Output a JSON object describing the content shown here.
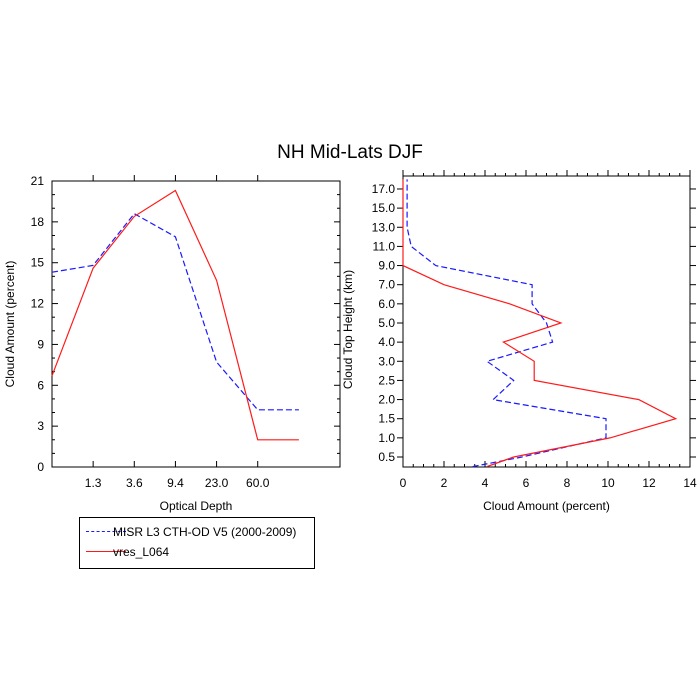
{
  "page": {
    "title": "NH Mid-Lats DJF"
  },
  "legend": {
    "entries": [
      {
        "label": "MISR L3 CTH-OD V5 (2000-2009)",
        "color": "#1a1aff",
        "style": "dashed"
      },
      {
        "label": "vres_L064",
        "color": "#ff1a1a",
        "style": "solid"
      }
    ]
  },
  "chart_data": [
    {
      "type": "line",
      "xlabel": "Optical Depth",
      "ylabel": "Cloud Amount (percent)",
      "x_tick_labels": [
        "1.3",
        "3.6",
        "9.4",
        "23.0",
        "60.0"
      ],
      "x_bins": 7,
      "ylim": [
        0,
        21
      ],
      "y_ticks": [
        0,
        3,
        6,
        9,
        12,
        15,
        18,
        21
      ],
      "series": [
        {
          "name": "MISR L3 CTH-OD V5 (2000-2009)",
          "color": "#1a1aff",
          "style": "dashed",
          "x": [
            0,
            1,
            2,
            3,
            4,
            5,
            6
          ],
          "y": [
            14.3,
            14.8,
            18.6,
            16.9,
            7.7,
            4.2,
            4.2
          ]
        },
        {
          "name": "vres_L064",
          "color": "#ff1a1a",
          "style": "solid",
          "x": [
            0,
            1,
            2,
            3,
            4,
            5,
            6
          ],
          "y": [
            6.7,
            14.6,
            18.4,
            20.3,
            13.7,
            2.0,
            2.0
          ]
        }
      ]
    },
    {
      "type": "line",
      "xlabel": "Cloud Amount (percent)",
      "ylabel": "Cloud Top Height (km)",
      "xlim": [
        0,
        14
      ],
      "x_ticks": [
        0,
        2,
        4,
        6,
        8,
        10,
        12,
        14
      ],
      "y_tick_labels": [
        "0.5",
        "1.0",
        "1.5",
        "2.0",
        "2.5",
        "3.0",
        "4.0",
        "5.0",
        "6.0",
        "7.0",
        "9.0",
        "11.0",
        "13.0",
        "15.0",
        "17.0"
      ],
      "series": [
        {
          "name": "MISR L3 CTH-OD V5 (2000-2009)",
          "color": "#1a1aff",
          "style": "dashed",
          "level_index": [
            -0.5,
            0,
            1,
            2,
            3,
            4,
            5,
            6,
            7,
            8,
            9,
            10,
            11,
            12,
            13,
            14,
            14.5
          ],
          "x": [
            3.4,
            5.8,
            9.9,
            9.9,
            4.4,
            5.4,
            4.1,
            7.3,
            7.0,
            6.3,
            6.3,
            1.6,
            0.4,
            0.2,
            0.2,
            0.2,
            0.2
          ]
        },
        {
          "name": "vres_L064",
          "color": "#ff1a1a",
          "style": "solid",
          "level_index": [
            -0.5,
            0,
            1,
            2,
            3,
            4,
            5,
            6,
            7,
            8,
            9,
            10,
            11,
            12,
            13,
            14,
            14.5
          ],
          "x": [
            4.1,
            5.4,
            10.1,
            13.3,
            11.5,
            6.4,
            6.4,
            4.9,
            7.7,
            5.2,
            2.0,
            0.0,
            0.0,
            0.0,
            0.0,
            0.0,
            0.0
          ]
        }
      ]
    }
  ]
}
